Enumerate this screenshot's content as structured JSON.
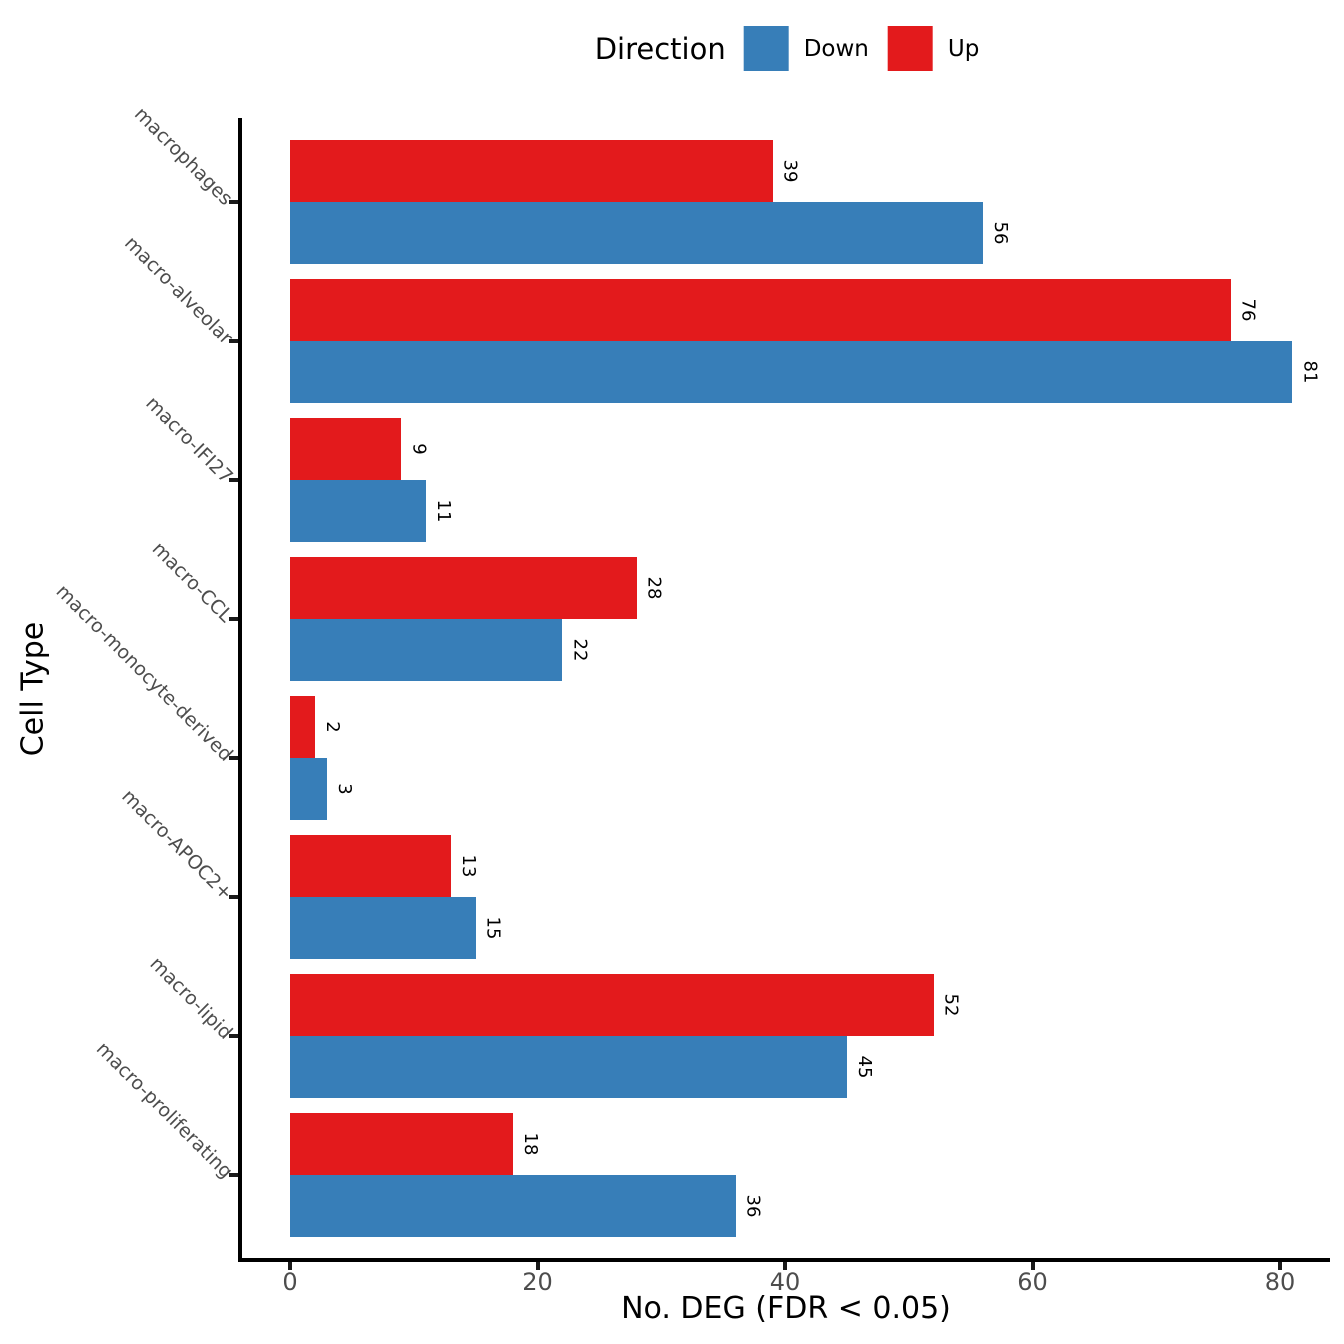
{
  "legend": {
    "title": "Direction",
    "items": [
      {
        "label": "Down",
        "color": "#377EB8"
      },
      {
        "label": "Up",
        "color": "#E31A1C"
      }
    ]
  },
  "chart_data": {
    "type": "bar",
    "orientation": "horizontal",
    "title": "",
    "xlabel": "No. DEG (FDR < 0.05)",
    "ylabel": "Cell Type",
    "categories": [
      "macrophages",
      "macro-alveolar",
      "macro-IFI27",
      "macro-CCL",
      "macro-monocyte-derived",
      "macro-APOC2+",
      "macro-lipid",
      "macro-proliferating"
    ],
    "series": [
      {
        "name": "Up",
        "color": "#E31A1C",
        "values": [
          39,
          76,
          9,
          28,
          2,
          13,
          52,
          18
        ]
      },
      {
        "name": "Down",
        "color": "#377EB8",
        "values": [
          56,
          81,
          11,
          22,
          3,
          15,
          45,
          36
        ]
      }
    ],
    "bar_value_labels": true,
    "x_ticks": [
      0,
      20,
      40,
      60,
      80
    ],
    "xlim": [
      0,
      84
    ],
    "grid": false,
    "legend_position": "top-center"
  }
}
